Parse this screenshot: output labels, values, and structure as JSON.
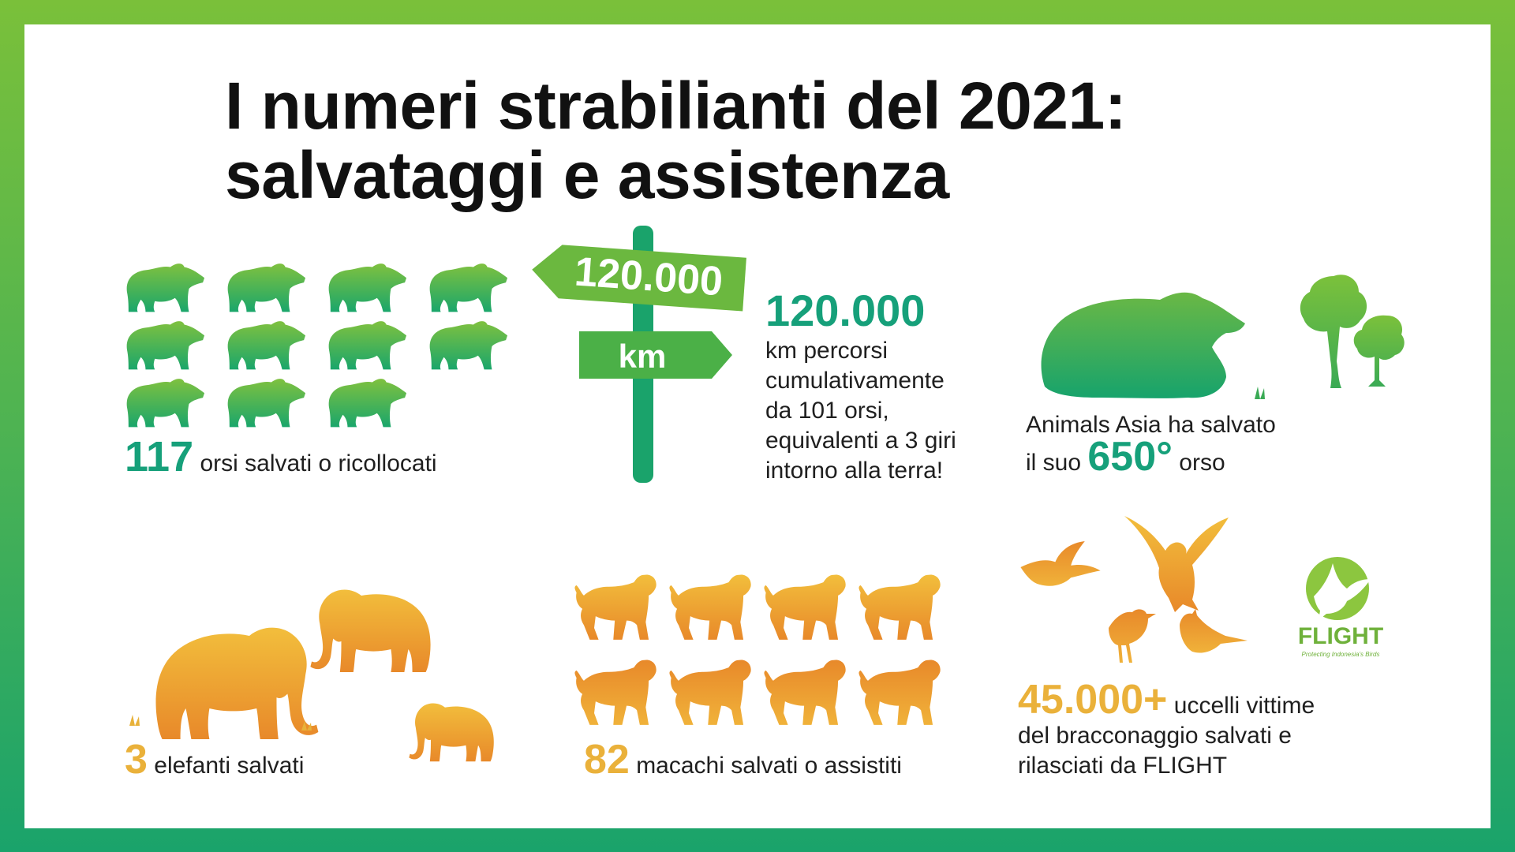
{
  "title": {
    "line1": "I numeri strabilianti del 2021:",
    "line2": "salvataggi e assistenza"
  },
  "bears": {
    "count": "117",
    "text": "orsi salvati o ricollocati",
    "icon": "bear-silhouette-icon"
  },
  "signpost": {
    "top": "120.000",
    "bottom": "km",
    "icon": "signpost-icon"
  },
  "distance": {
    "value": "120.000",
    "lines": [
      "km percorsi",
      "cumulativamente",
      "da 101 orsi,",
      "equivalenti a 3 giri",
      "intorno alla terra!"
    ]
  },
  "animals_asia": {
    "line1": "Animals Asia ha salvato",
    "pre": "il suo",
    "value": "650°",
    "post": "orso"
  },
  "elephants": {
    "count": "3",
    "text": "elefanti salvati",
    "icon": "elephant-icon"
  },
  "macaques": {
    "count": "82",
    "text": "macachi salvati o assistiti",
    "icon": "macaque-icon"
  },
  "birds": {
    "count": "45.000+",
    "line1": "uccelli vittime",
    "line2": "del bracconaggio salvati e",
    "line3": "rilasciati da FLIGHT",
    "icon": "bird-icon"
  },
  "flight_logo": {
    "name": "FLIGHT",
    "tagline": "Protecting Indonesia's Birds"
  },
  "colors": {
    "green_top": "#7ac03a",
    "green_bottom": "#1aa36b",
    "teal_text": "#16a07a",
    "orange_text": "#eab13a",
    "orange_dark": "#e8892a"
  }
}
